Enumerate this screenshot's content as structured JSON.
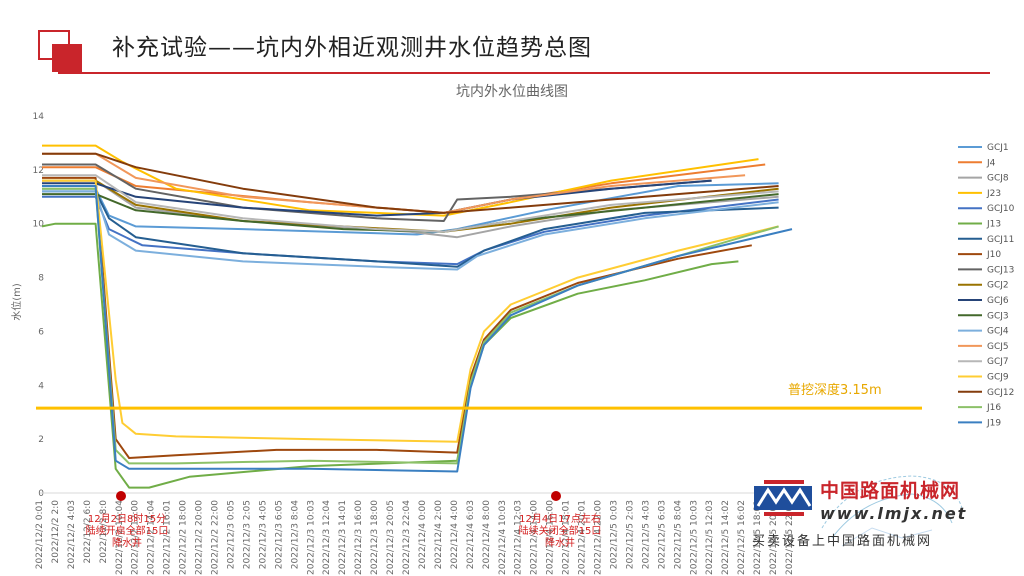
{
  "page": {
    "title": "补充试验——坑内外相近观测井水位趋势总图"
  },
  "watermark": {
    "site_name": "中国路面机械网",
    "site_url": "www.lmjx.net",
    "slogan": "买卖设备上中国路面机械网"
  },
  "chart_data": {
    "type": "line",
    "title": "坑内外水位曲线图",
    "xlabel": "",
    "ylabel": "水位(m)",
    "ylim": [
      0,
      14
    ],
    "yticks": [
      0,
      2,
      4,
      6,
      8,
      10,
      12,
      14
    ],
    "grid": false,
    "legend_position": "right",
    "x_start": "2022/12/2 0:01",
    "x_end": "2022/12/5 23:01",
    "categories": [
      "2022/12/2 0:01",
      "2022/12/2 2:0",
      "2022/12/2 4:03",
      "2022/12/2 6:0",
      "2022/12/2 8:0",
      "2022/12/2 10:04",
      "2022/12/2 12:00",
      "2022/12/2 14:04",
      "2022/12/2 16:01",
      "2022/12/2 18:00",
      "2022/12/2 20:00",
      "2022/12/2 22:00",
      "2022/12/3 0:05",
      "2022/12/3 2:05",
      "2022/12/3 4:05",
      "2022/12/3 6:05",
      "2022/12/3 8:04",
      "2022/12/3 10:03",
      "2022/12/3 12:04",
      "2022/12/3 14:01",
      "2022/12/3 16:00",
      "2022/12/3 18:00",
      "2022/12/3 20:05",
      "2022/12/3 22:04",
      "2022/12/4 0:00",
      "2022/12/4 2:00",
      "2022/12/4 4:00",
      "2022/12/4 6:03",
      "2022/12/4 8:00",
      "2022/12/4 10:03",
      "2022/12/4 12:03",
      "2022/12/4 14:00",
      "2022/12/4 16:00",
      "2022/12/4 18:01",
      "2022/12/4 20:01",
      "2022/12/4 22:00",
      "2022/12/5 0:03",
      "2022/12/5 2:03",
      "2022/12/5 4:03",
      "2022/12/5 6:03",
      "2022/12/5 8:04",
      "2022/12/5 10:03",
      "2022/12/5 12:03",
      "2022/12/5 14:02",
      "2022/12/5 16:02",
      "2022/12/5 18:01",
      "2022/12/5 20:00",
      "2022/12/5 22:01"
    ],
    "reference_line": {
      "value": 3.15,
      "label": "普挖深度3.15m",
      "color": "#ffc000"
    },
    "annotations": [
      {
        "x": "2022/12/2 8:00",
        "text_lines": [
          "12月2日8时15分",
          "陆续开启全部15口",
          "降水井"
        ]
      },
      {
        "x": "2022/12/4 18:00",
        "text_lines": [
          "12月4日17点左右",
          "陆续关闭全部15口",
          "降水井"
        ]
      }
    ],
    "series": [
      {
        "name": "GCJ1",
        "color": "#5b9bd5",
        "points": [
          [
            0,
            11.3
          ],
          [
            8,
            11.3
          ],
          [
            10,
            10.3
          ],
          [
            14,
            9.9
          ],
          [
            30,
            9.8
          ],
          [
            56,
            9.6
          ],
          [
            62,
            9.8
          ],
          [
            75,
            10.5
          ],
          [
            95,
            11.4
          ],
          [
            110,
            11.5
          ]
        ]
      },
      {
        "name": "J4",
        "color": "#ed7d31",
        "points": [
          [
            0,
            12.1
          ],
          [
            8,
            12.1
          ],
          [
            14,
            11.4
          ],
          [
            40,
            10.8
          ],
          [
            60,
            10.4
          ],
          [
            70,
            10.9
          ],
          [
            85,
            11.5
          ],
          [
            108,
            12.2
          ]
        ]
      },
      {
        "name": "GCJ8",
        "color": "#a5a5a5",
        "points": [
          [
            0,
            11.6
          ],
          [
            8,
            11.6
          ],
          [
            14,
            10.6
          ],
          [
            30,
            10.1
          ],
          [
            55,
            9.7
          ],
          [
            62,
            9.5
          ],
          [
            70,
            9.9
          ],
          [
            85,
            10.5
          ],
          [
            110,
            11.0
          ]
        ]
      },
      {
        "name": "J23",
        "color": "#ffc000",
        "points": [
          [
            0,
            12.9
          ],
          [
            8,
            12.9
          ],
          [
            12,
            12.3
          ],
          [
            20,
            11.3
          ],
          [
            40,
            10.5
          ],
          [
            60,
            10.3
          ],
          [
            70,
            10.8
          ],
          [
            85,
            11.6
          ],
          [
            107,
            12.4
          ]
        ]
      },
      {
        "name": "GCJ10",
        "color": "#4472c4",
        "points": [
          [
            0,
            11.0
          ],
          [
            8,
            11.0
          ],
          [
            10,
            9.8
          ],
          [
            15,
            9.2
          ],
          [
            30,
            8.9
          ],
          [
            50,
            8.6
          ],
          [
            62,
            8.5
          ],
          [
            66,
            9.0
          ],
          [
            75,
            9.7
          ],
          [
            90,
            10.3
          ],
          [
            110,
            10.9
          ]
        ]
      },
      {
        "name": "J13",
        "color": "#70ad47",
        "points": [
          [
            0,
            9.9
          ],
          [
            2,
            10.0
          ],
          [
            8,
            10.0
          ],
          [
            11,
            0.9
          ],
          [
            13,
            0.2
          ],
          [
            16,
            0.2
          ],
          [
            22,
            0.6
          ],
          [
            40,
            1.0
          ],
          [
            62,
            1.2
          ],
          [
            64,
            4.0
          ],
          [
            66,
            5.5
          ],
          [
            70,
            6.5
          ],
          [
            80,
            7.4
          ],
          [
            90,
            7.9
          ],
          [
            100,
            8.5
          ],
          [
            104,
            8.6
          ]
        ]
      },
      {
        "name": "GCJ11",
        "color": "#255e91",
        "points": [
          [
            0,
            11.2
          ],
          [
            8,
            11.2
          ],
          [
            10,
            10.2
          ],
          [
            14,
            9.5
          ],
          [
            30,
            8.9
          ],
          [
            50,
            8.6
          ],
          [
            62,
            8.4
          ],
          [
            66,
            9.0
          ],
          [
            75,
            9.8
          ],
          [
            90,
            10.4
          ],
          [
            110,
            10.6
          ]
        ]
      },
      {
        "name": "J10",
        "color": "#9e480e",
        "points": [
          [
            0,
            11.7
          ],
          [
            8,
            11.7
          ],
          [
            11,
            2.0
          ],
          [
            13,
            1.3
          ],
          [
            20,
            1.4
          ],
          [
            35,
            1.6
          ],
          [
            50,
            1.6
          ],
          [
            62,
            1.5
          ],
          [
            64,
            4.3
          ],
          [
            66,
            5.7
          ],
          [
            70,
            6.8
          ],
          [
            80,
            7.8
          ],
          [
            95,
            8.7
          ],
          [
            106,
            9.2
          ]
        ]
      },
      {
        "name": "GCJ13",
        "color": "#636363",
        "points": [
          [
            0,
            12.2
          ],
          [
            8,
            12.2
          ],
          [
            14,
            11.3
          ],
          [
            30,
            10.6
          ],
          [
            50,
            10.2
          ],
          [
            60,
            10.1
          ],
          [
            62,
            10.9
          ],
          [
            70,
            11.0
          ],
          [
            100,
            11.6
          ]
        ]
      },
      {
        "name": "GCJ2",
        "color": "#997300",
        "points": [
          [
            0,
            11.6
          ],
          [
            8,
            11.6
          ],
          [
            14,
            10.7
          ],
          [
            30,
            10.1
          ],
          [
            60,
            9.7
          ],
          [
            70,
            10.0
          ],
          [
            85,
            10.6
          ],
          [
            110,
            11.3
          ]
        ]
      },
      {
        "name": "GCJ6",
        "color": "#264478",
        "points": [
          [
            0,
            11.5
          ],
          [
            8,
            11.5
          ],
          [
            14,
            11.0
          ],
          [
            30,
            10.6
          ],
          [
            50,
            10.3
          ],
          [
            60,
            10.4
          ],
          [
            70,
            10.9
          ],
          [
            85,
            11.3
          ],
          [
            100,
            11.6
          ]
        ]
      },
      {
        "name": "GCJ3",
        "color": "#43682b",
        "points": [
          [
            0,
            11.1
          ],
          [
            8,
            11.1
          ],
          [
            14,
            10.5
          ],
          [
            30,
            10.1
          ],
          [
            45,
            9.8
          ],
          [
            60,
            9.7
          ],
          [
            70,
            10.1
          ],
          [
            90,
            10.6
          ],
          [
            110,
            11.1
          ]
        ]
      },
      {
        "name": "GCJ4",
        "color": "#7cafdd",
        "points": [
          [
            0,
            11.2
          ],
          [
            8,
            11.2
          ],
          [
            10,
            9.6
          ],
          [
            14,
            9.0
          ],
          [
            30,
            8.6
          ],
          [
            50,
            8.4
          ],
          [
            62,
            8.3
          ],
          [
            65,
            8.8
          ],
          [
            75,
            9.6
          ],
          [
            90,
            10.2
          ],
          [
            110,
            10.8
          ]
        ]
      },
      {
        "name": "GCJ5",
        "color": "#f1975a",
        "points": [
          [
            0,
            12.6
          ],
          [
            8,
            12.6
          ],
          [
            14,
            11.7
          ],
          [
            30,
            11.0
          ],
          [
            50,
            10.6
          ],
          [
            60,
            10.4
          ],
          [
            70,
            10.9
          ],
          [
            85,
            11.4
          ],
          [
            105,
            11.8
          ]
        ]
      },
      {
        "name": "GCJ7",
        "color": "#b7b7b7",
        "points": [
          [
            0,
            11.8
          ],
          [
            8,
            11.8
          ],
          [
            14,
            10.8
          ],
          [
            30,
            10.2
          ],
          [
            50,
            9.8
          ],
          [
            60,
            9.7
          ],
          [
            70,
            10.1
          ],
          [
            85,
            10.7
          ],
          [
            110,
            11.2
          ]
        ]
      },
      {
        "name": "GCJ9",
        "color": "#ffcd33",
        "points": [
          [
            0,
            11.6
          ],
          [
            8,
            11.6
          ],
          [
            11,
            4.2
          ],
          [
            12,
            2.6
          ],
          [
            14,
            2.2
          ],
          [
            20,
            2.1
          ],
          [
            40,
            2.0
          ],
          [
            62,
            1.9
          ],
          [
            64,
            4.6
          ],
          [
            66,
            6.0
          ],
          [
            70,
            7.0
          ],
          [
            80,
            8.0
          ],
          [
            95,
            9.0
          ],
          [
            110,
            9.9
          ]
        ]
      },
      {
        "name": "GCJ12",
        "color": "#843c0c",
        "points": [
          [
            0,
            12.6
          ],
          [
            8,
            12.6
          ],
          [
            14,
            12.1
          ],
          [
            30,
            11.3
          ],
          [
            50,
            10.6
          ],
          [
            60,
            10.4
          ],
          [
            70,
            10.6
          ],
          [
            90,
            11.0
          ],
          [
            110,
            11.4
          ]
        ]
      },
      {
        "name": "J16",
        "color": "#8cc168",
        "points": [
          [
            0,
            11.3
          ],
          [
            8,
            11.3
          ],
          [
            11,
            1.6
          ],
          [
            13,
            1.1
          ],
          [
            20,
            1.1
          ],
          [
            40,
            1.2
          ],
          [
            62,
            1.1
          ],
          [
            64,
            4.1
          ],
          [
            66,
            5.6
          ],
          [
            70,
            6.7
          ],
          [
            80,
            7.7
          ],
          [
            95,
            8.8
          ],
          [
            110,
            9.9
          ]
        ]
      },
      {
        "name": "J19",
        "color": "#3a7fc1",
        "points": [
          [
            0,
            11.4
          ],
          [
            8,
            11.4
          ],
          [
            11,
            1.2
          ],
          [
            13,
            0.9
          ],
          [
            20,
            0.9
          ],
          [
            40,
            0.9
          ],
          [
            62,
            0.8
          ],
          [
            64,
            3.9
          ],
          [
            66,
            5.5
          ],
          [
            70,
            6.6
          ],
          [
            80,
            7.7
          ],
          [
            95,
            8.8
          ],
          [
            112,
            9.8
          ]
        ]
      }
    ]
  }
}
